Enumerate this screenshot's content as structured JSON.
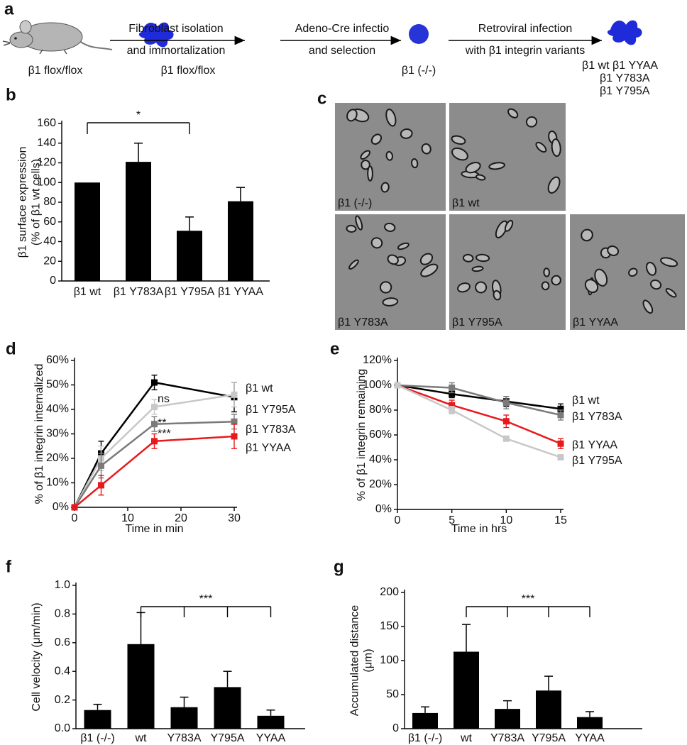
{
  "schematic": {
    "panel_label": "a",
    "start_label": "β1 flox/flox",
    "steps": [
      {
        "lines": [
          "Fibroblast isolation",
          "and immortalization"
        ],
        "result": [
          "β1 flox/flox"
        ]
      },
      {
        "lines": [
          "Adeno-Cre infectio",
          "and selection"
        ],
        "result": [
          "β1 (-/-)"
        ]
      },
      {
        "lines": [
          "Retroviral infection",
          "with β1 integrin variants"
        ],
        "result": [
          "β1 wt",
          "β1 YYAA",
          "β1 Y783A",
          "β1 Y795A"
        ]
      }
    ]
  },
  "micrographs": {
    "panel_label": "c",
    "images": [
      "β1 (-/-)",
      "β1 wt",
      "β1 Y783A",
      "β1 Y795A",
      "β1 YYAA"
    ]
  },
  "chart_data": [
    {
      "type": "bar",
      "panel_label": "b",
      "ylabel": [
        "β1 surface expression",
        "(% of β1 wt cells)"
      ],
      "categories": [
        "β1 wt",
        "β1 Y783A",
        "β1 Y795A",
        "β1 YYAA"
      ],
      "values": [
        100,
        121,
        51,
        81
      ],
      "errors": [
        null,
        19,
        14,
        14
      ],
      "color": "#000000",
      "ylim": [
        0,
        160
      ],
      "yticks": [
        0,
        20,
        40,
        60,
        80,
        100,
        120,
        140,
        160
      ],
      "significance_label": "*"
    },
    {
      "type": "line",
      "panel_label": "d",
      "ylabel": "% of β1 integrin internalized",
      "xlabel": "Time in min",
      "x": [
        0,
        5,
        15,
        30
      ],
      "xlim": [
        0,
        30
      ],
      "xticks": [
        0,
        10,
        20,
        30
      ],
      "ylim": [
        0,
        60
      ],
      "yticks": [
        {
          "value": 0,
          "label": "0%"
        },
        {
          "value": 10,
          "label": "10%"
        },
        {
          "value": 20,
          "label": "20%"
        },
        {
          "value": 30,
          "label": "30%"
        },
        {
          "value": 40,
          "label": "40%"
        },
        {
          "value": 50,
          "label": "50%"
        },
        {
          "value": 60,
          "label": "60%"
        }
      ],
      "series": [
        {
          "name": "β1 wt",
          "color": "#000000",
          "values": [
            0,
            22,
            51,
            45
          ],
          "errors": [
            null,
            5,
            3,
            6
          ]
        },
        {
          "name": "β1 Y795A",
          "color": "#c8c8c8",
          "values": [
            0,
            20,
            41,
            46
          ],
          "errors": [
            null,
            5,
            3,
            5
          ]
        },
        {
          "name": "β1 Y783A",
          "color": "#7a7a7a",
          "values": [
            0,
            17,
            34,
            35
          ],
          "errors": [
            null,
            5,
            3,
            3
          ]
        },
        {
          "name": "β1 YYAA",
          "color": "#e8191c",
          "values": [
            0,
            9,
            27,
            29
          ],
          "errors": [
            null,
            4,
            3,
            5
          ]
        }
      ],
      "annotations": [
        "ns",
        "**",
        "***"
      ]
    },
    {
      "type": "line",
      "panel_label": "e",
      "ylabel": "% of β1 integrin remaining",
      "xlabel": "Time in hrs",
      "x": [
        0,
        5,
        10,
        15
      ],
      "xlim": [
        0,
        15
      ],
      "xticks": [
        0,
        5,
        10,
        15
      ],
      "ylim": [
        0,
        120
      ],
      "yticks": [
        {
          "value": 0,
          "label": "0%"
        },
        {
          "value": 20,
          "label": "20%"
        },
        {
          "value": 40,
          "label": "40%"
        },
        {
          "value": 60,
          "label": "60%"
        },
        {
          "value": 80,
          "label": "80%"
        },
        {
          "value": 100,
          "label": "100%"
        },
        {
          "value": 120,
          "label": "120%"
        }
      ],
      "series": [
        {
          "name": "β1 wt",
          "color": "#000000",
          "values": [
            100,
            93,
            87,
            81
          ],
          "errors": [
            null,
            3,
            4,
            4
          ]
        },
        {
          "name": "β1 Y783A",
          "color": "#7a7a7a",
          "values": [
            100,
            98,
            86,
            76
          ],
          "errors": [
            null,
            4,
            5,
            4
          ]
        },
        {
          "name": "β1 YYAA",
          "color": "#e8191c",
          "values": [
            100,
            84,
            71,
            53
          ],
          "errors": [
            null,
            4,
            5,
            4
          ]
        },
        {
          "name": "β1 Y795A",
          "color": "#c8c8c8",
          "values": [
            100,
            80,
            57,
            42
          ],
          "errors": [
            null,
            3,
            2,
            2
          ]
        }
      ]
    },
    {
      "type": "bar",
      "panel_label": "f",
      "ylabel": [
        "Cell velocity (μm/min)"
      ],
      "categories": [
        "β1 (-/-)",
        "wt",
        "Y783A",
        "Y795A",
        "YYAA"
      ],
      "values": [
        0.13,
        0.59,
        0.15,
        0.29,
        0.09
      ],
      "errors": [
        0.04,
        0.22,
        0.07,
        0.11,
        0.04
      ],
      "color": "#000000",
      "ylim": [
        0,
        1
      ],
      "yticks": [
        {
          "value": 0,
          "label": "0.0"
        },
        0.2,
        0.4,
        0.6,
        0.8,
        {
          "value": 1,
          "label": "1.0"
        }
      ],
      "significance_label": "***"
    },
    {
      "type": "bar",
      "panel_label": "g",
      "ylabel": [
        "Accumulated distance",
        "(μm)"
      ],
      "categories": [
        "β1 (-/-)",
        "wt",
        "Y783A",
        "Y795A",
        "YYAA"
      ],
      "values": [
        23,
        113,
        29,
        56,
        17
      ],
      "errors": [
        9,
        40,
        12,
        21,
        8
      ],
      "color": "#000000",
      "ylim": [
        0,
        200
      ],
      "yticks": [
        0,
        50,
        100,
        150,
        200
      ],
      "significance_label": "***"
    }
  ]
}
